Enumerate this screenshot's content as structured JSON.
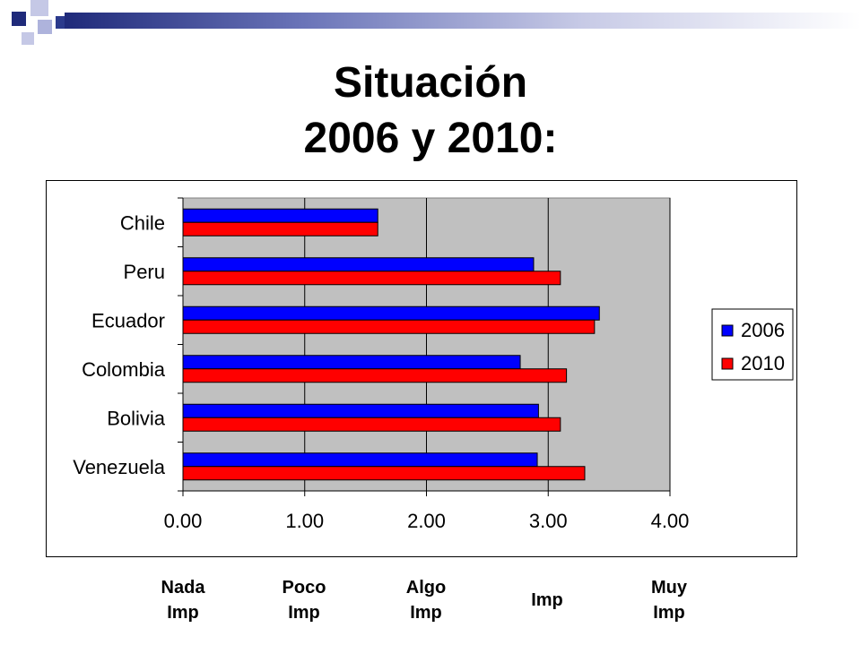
{
  "slide": {
    "title_line1": "Situación",
    "title_line2": "2006 y 2010:",
    "accent_color": "#2b3a8c"
  },
  "chart_data": {
    "type": "bar",
    "orientation": "horizontal",
    "title": "",
    "xlabel": "",
    "ylabel": "",
    "categories": [
      "Chile",
      "Peru",
      "Ecuador",
      "Colombia",
      "Bolivia",
      "Venezuela"
    ],
    "series": [
      {
        "name": "2006",
        "color": "#0000ff",
        "values": [
          1.6,
          2.88,
          3.42,
          2.77,
          2.92,
          2.91
        ]
      },
      {
        "name": "2010",
        "color": "#ff0000",
        "values": [
          1.6,
          3.1,
          3.38,
          3.15,
          3.1,
          3.3
        ]
      }
    ],
    "xlim": [
      0,
      4
    ],
    "xticks": [
      "0.00",
      "1.00",
      "2.00",
      "3.00",
      "4.00"
    ],
    "grid": "vertical",
    "plot_background": "#c0c0c0",
    "legend_position": "right"
  },
  "scale_labels": [
    {
      "line1": "Nada",
      "line2": "Imp"
    },
    {
      "line1": "Poco",
      "line2": "Imp"
    },
    {
      "line1": "Algo",
      "line2": "Imp"
    },
    {
      "line1": "Imp",
      "line2": ""
    },
    {
      "line1": "Muy",
      "line2": "Imp"
    }
  ]
}
